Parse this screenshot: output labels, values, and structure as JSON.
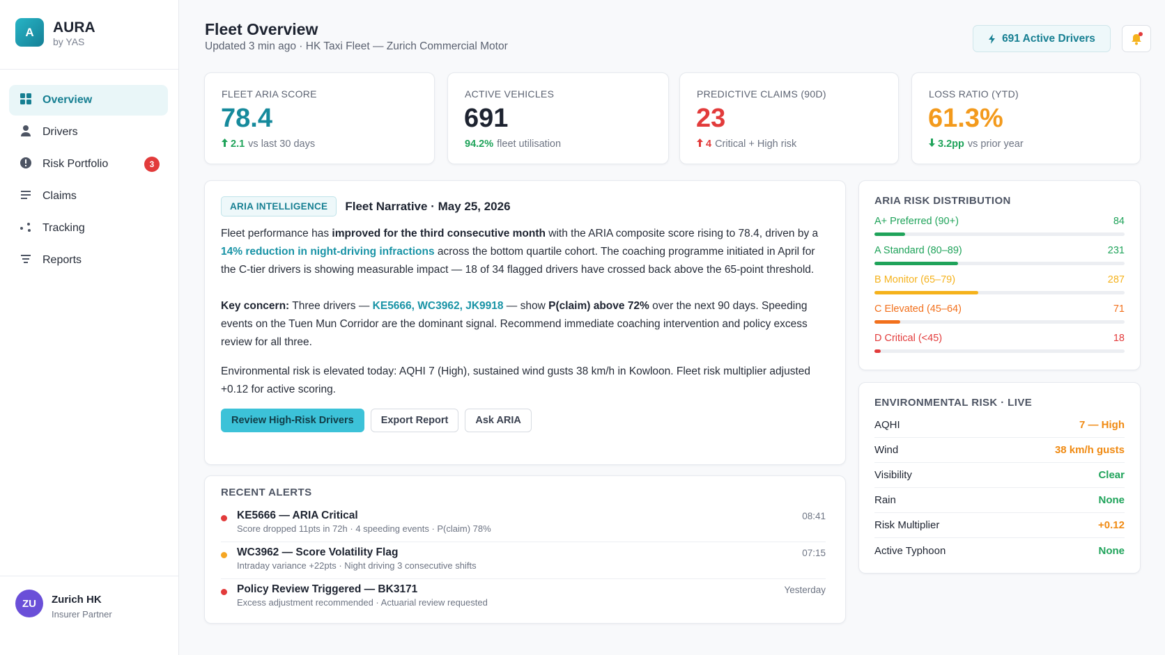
{
  "brand": {
    "logo_letter": "A",
    "name": "AURA",
    "sub": "by YAS"
  },
  "nav": [
    {
      "label": "Overview"
    },
    {
      "label": "Drivers"
    },
    {
      "label": "Risk Portfolio",
      "badge": "3"
    },
    {
      "label": "Claims"
    },
    {
      "label": "Tracking"
    },
    {
      "label": "Reports"
    }
  ],
  "user": {
    "initials": "ZU",
    "name": "Zurich HK",
    "role": "Insurer Partner"
  },
  "header": {
    "title": "Fleet Overview",
    "subtitle": "Updated 3 min ago · HK Taxi Fleet — Zurich Commercial Motor",
    "active_button": "691 Active Drivers"
  },
  "kpis": [
    {
      "label": "FLEET ARIA SCORE",
      "value": "78.4",
      "color": "#168a9c",
      "delta": "2.1",
      "delta_text": "vs last 30 days",
      "delta_color": "#1fa35a"
    },
    {
      "label": "ACTIVE VEHICLES",
      "value": "691",
      "color": "#1d2330",
      "delta": "94.2%",
      "delta_text": "fleet utilisation",
      "delta_color": "#1fa35a"
    },
    {
      "label": "PREDICTIVE CLAIMS (90D)",
      "value": "23",
      "color": "#e23b3b",
      "delta": "4",
      "delta_text": "Critical + High risk",
      "delta_color": "#e23b3b"
    },
    {
      "label": "LOSS RATIO (YTD)",
      "value": "61.3%",
      "color": "#f39a1c",
      "delta": "3.2pp",
      "delta_text": "vs prior year",
      "delta_color": "#1fa35a"
    }
  ],
  "narrative": {
    "tag": "ARIA INTELLIGENCE",
    "title": "Fleet Narrative · May 25, 2026",
    "paragraphs": [
      [
        "Fleet performance has ",
        "improved for the third consecutive month",
        " with the ARIA composite score rising to 78.4, driven by a ",
        "14% reduction in night-driving infractions",
        " across the bottom quartile cohort. The coaching programme initiated in April for the C-tier drivers is showing measurable impact — 18 of 34 flagged drivers have crossed back above the 65-point threshold."
      ],
      [
        "Key concern:",
        " Three drivers — ",
        "KE5666, WC3962, JK9918",
        " — show ",
        "P(claim) above 72%",
        " over the next 90 days. Speeding events on the Tuen Mun Corridor are the dominant signal. Recommend immediate coaching intervention and policy excess review for all three."
      ],
      [
        "Environmental risk is elevated today: AQHI 7 (High), sustained wind gusts 38 km/h in Kowloon. Fleet risk multiplier adjusted +0.12 for active scoring."
      ]
    ],
    "buttons": [
      "Review High-Risk Drivers",
      "Export Report",
      "Ask ARIA"
    ]
  },
  "alerts": {
    "title": "RECENT ALERTS",
    "items": [
      {
        "title": "KE5666 — ARIA Critical",
        "detail": "Score dropped 11pts in 72h · 4 speeding events · P(claim) 78%",
        "time": "08:41",
        "color": "#e23b3b"
      },
      {
        "title": "WC3962 — Score Volatility Flag",
        "detail": "Intraday variance +22pts · Night driving 3 consecutive shifts",
        "time": "07:15",
        "color": "#f5a623"
      },
      {
        "title": "Policy Review Triggered — BK3171",
        "detail": "Excess adjustment recommended · Actuarial review requested",
        "time": "Yesterday",
        "color": "#e23b3b"
      }
    ]
  },
  "distribution": {
    "title": "ARIA RISK DISTRIBUTION",
    "rows": [
      {
        "label": "A+ Preferred (90+)",
        "count": 84,
        "color": "#1fa35a"
      },
      {
        "label": "A Standard (80–89)",
        "count": 231,
        "color": "#1fa35a"
      },
      {
        "label": "B Monitor (65–79)",
        "count": 287,
        "color": "#f5b21c"
      },
      {
        "label": "C Elevated (45–64)",
        "count": 71,
        "color": "#f2701c"
      },
      {
        "label": "D Critical (<45)",
        "count": 18,
        "color": "#e23b3b"
      }
    ]
  },
  "environment": {
    "title": "ENVIRONMENTAL RISK · LIVE",
    "rows": [
      {
        "label": "AQHI",
        "value": "7 — High",
        "color": "#f08a12"
      },
      {
        "label": "Wind",
        "value": "38 km/h gusts",
        "color": "#f08a12"
      },
      {
        "label": "Visibility",
        "value": "Clear",
        "color": "#1fa35a"
      },
      {
        "label": "Rain",
        "value": "None",
        "color": "#1fa35a"
      },
      {
        "label": "Risk Multiplier",
        "value": "+0.12",
        "color": "#f08a12"
      },
      {
        "label": "Active Typhoon",
        "value": "None",
        "color": "#1fa35a"
      }
    ]
  }
}
